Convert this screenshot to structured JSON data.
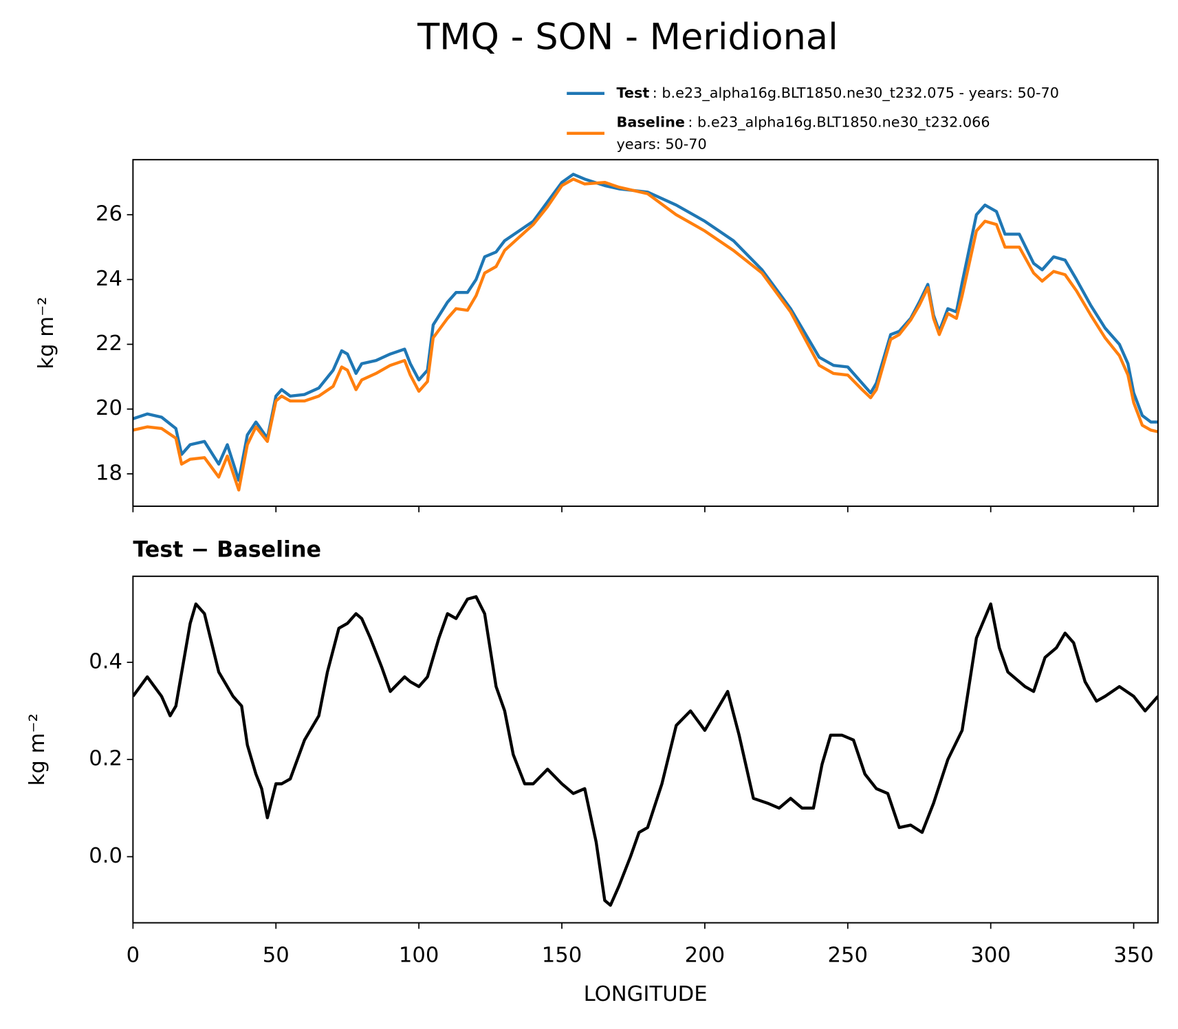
{
  "chart_data": [
    {
      "type": "line",
      "title": "TMQ - SON - Meridional",
      "ylabel": "kg m⁻²",
      "x": [
        0,
        5,
        10,
        15,
        17,
        20,
        25,
        30,
        33,
        37,
        40,
        43,
        47,
        50,
        52,
        55,
        60,
        65,
        70,
        73,
        75,
        78,
        80,
        85,
        90,
        95,
        97,
        100,
        103,
        105,
        110,
        113,
        117,
        120,
        123,
        127,
        130,
        135,
        140,
        145,
        150,
        154,
        158,
        165,
        170,
        180,
        190,
        200,
        210,
        220,
        230,
        240,
        245,
        250,
        255,
        258,
        260,
        265,
        268,
        272,
        275,
        278,
        280,
        282,
        285,
        288,
        290,
        295,
        298,
        302,
        305,
        310,
        315,
        318,
        322,
        326,
        330,
        335,
        340,
        345,
        348,
        350,
        353,
        356,
        358.5
      ],
      "series": [
        {
          "name": "Test",
          "run": [
            ": b.e23_alpha16g.BLT1850.ne30_t232.075 - years: 50-70"
          ],
          "color": "#1f77b4",
          "values": [
            19.7,
            19.85,
            19.75,
            19.4,
            18.6,
            18.9,
            19.0,
            18.3,
            18.9,
            17.8,
            19.2,
            19.6,
            19.1,
            20.4,
            20.6,
            20.4,
            20.45,
            20.65,
            21.2,
            21.8,
            21.7,
            21.1,
            21.4,
            21.5,
            21.7,
            21.85,
            21.4,
            20.9,
            21.2,
            22.6,
            23.3,
            23.6,
            23.6,
            24.0,
            24.7,
            24.85,
            25.2,
            25.5,
            25.8,
            26.4,
            27.0,
            27.25,
            27.1,
            26.9,
            26.8,
            26.7,
            26.3,
            25.8,
            25.2,
            24.3,
            23.1,
            21.6,
            21.35,
            21.3,
            20.8,
            20.5,
            20.8,
            22.3,
            22.4,
            22.8,
            23.3,
            23.85,
            22.9,
            22.4,
            23.1,
            23.0,
            23.9,
            26.0,
            26.3,
            26.1,
            25.4,
            25.4,
            24.5,
            24.3,
            24.7,
            24.6,
            24.0,
            23.2,
            22.5,
            22.0,
            21.4,
            20.5,
            19.8,
            19.6,
            19.6
          ]
        },
        {
          "name": "Baseline",
          "run": [
            ": b.e23_alpha16g.BLT1850.ne30_t232.066",
            "years: 50-70"
          ],
          "color": "#ff7f0e",
          "values": [
            19.35,
            19.45,
            19.4,
            19.1,
            18.3,
            18.45,
            18.5,
            17.9,
            18.55,
            17.5,
            18.9,
            19.45,
            19.0,
            20.25,
            20.4,
            20.25,
            20.25,
            20.4,
            20.7,
            21.3,
            21.2,
            20.6,
            20.9,
            21.1,
            21.35,
            21.5,
            21.05,
            20.55,
            20.85,
            22.2,
            22.8,
            23.1,
            23.05,
            23.5,
            24.2,
            24.4,
            24.9,
            25.3,
            25.7,
            26.25,
            26.9,
            27.1,
            26.95,
            27.0,
            26.85,
            26.65,
            26.0,
            25.5,
            24.9,
            24.2,
            23.0,
            21.35,
            21.1,
            21.05,
            20.6,
            20.35,
            20.6,
            22.15,
            22.3,
            22.75,
            23.2,
            23.75,
            22.8,
            22.3,
            22.95,
            22.8,
            23.5,
            25.5,
            25.8,
            25.7,
            25.0,
            25.0,
            24.2,
            23.95,
            24.25,
            24.15,
            23.65,
            22.9,
            22.2,
            21.65,
            21.05,
            20.2,
            19.5,
            19.35,
            19.3
          ]
        }
      ],
      "xlim": [
        0,
        358.5
      ],
      "xticks": [
        0,
        50,
        100,
        150,
        200,
        250,
        300,
        350
      ],
      "ylim": [
        17.0,
        27.7
      ],
      "yticks": [
        18,
        20,
        22,
        24,
        26
      ],
      "legend": "upper right"
    },
    {
      "type": "line",
      "title": "Test − Baseline",
      "ylabel": "kg m⁻²",
      "xlabel": "LONGITUDE",
      "color": "#000000",
      "x": [
        0,
        5,
        10,
        13,
        15,
        20,
        22,
        25,
        30,
        35,
        38,
        40,
        43,
        45,
        47,
        50,
        52,
        55,
        60,
        65,
        68,
        72,
        75,
        78,
        80,
        83,
        87,
        90,
        95,
        97,
        100,
        103,
        107,
        110,
        113,
        117,
        120,
        123,
        127,
        130,
        133,
        137,
        140,
        145,
        150,
        154,
        158,
        162,
        165,
        167,
        170,
        174,
        177,
        180,
        185,
        190,
        195,
        200,
        205,
        208,
        212,
        217,
        222,
        226,
        230,
        234,
        238,
        241,
        244,
        248,
        252,
        256,
        260,
        264,
        268,
        272,
        276,
        280,
        285,
        290,
        295,
        300,
        303,
        306,
        312,
        315,
        319,
        323,
        326,
        329,
        333,
        337,
        340,
        345,
        350,
        354,
        358.5
      ],
      "values": [
        0.33,
        0.37,
        0.33,
        0.29,
        0.31,
        0.48,
        0.52,
        0.5,
        0.38,
        0.33,
        0.31,
        0.23,
        0.17,
        0.14,
        0.08,
        0.15,
        0.15,
        0.16,
        0.24,
        0.29,
        0.38,
        0.47,
        0.48,
        0.5,
        0.49,
        0.45,
        0.39,
        0.34,
        0.37,
        0.36,
        0.35,
        0.37,
        0.45,
        0.5,
        0.49,
        0.53,
        0.535,
        0.5,
        0.35,
        0.3,
        0.21,
        0.15,
        0.15,
        0.18,
        0.15,
        0.13,
        0.14,
        0.03,
        -0.09,
        -0.1,
        -0.06,
        0.0,
        0.05,
        0.06,
        0.15,
        0.27,
        0.3,
        0.26,
        0.31,
        0.34,
        0.25,
        0.12,
        0.11,
        0.1,
        0.12,
        0.1,
        0.1,
        0.19,
        0.25,
        0.25,
        0.24,
        0.17,
        0.14,
        0.13,
        0.06,
        0.065,
        0.05,
        0.11,
        0.2,
        0.26,
        0.45,
        0.52,
        0.43,
        0.38,
        0.35,
        0.34,
        0.41,
        0.43,
        0.46,
        0.44,
        0.36,
        0.32,
        0.33,
        0.35,
        0.33,
        0.3,
        0.33
      ],
      "xlim": [
        0,
        358.5
      ],
      "xticks": [
        0,
        50,
        100,
        150,
        200,
        250,
        300,
        350
      ],
      "ylim": [
        -0.136,
        0.577
      ],
      "yticks": [
        {
          "value": 0,
          "label": "0.0"
        },
        0.2,
        0.4
      ]
    }
  ]
}
